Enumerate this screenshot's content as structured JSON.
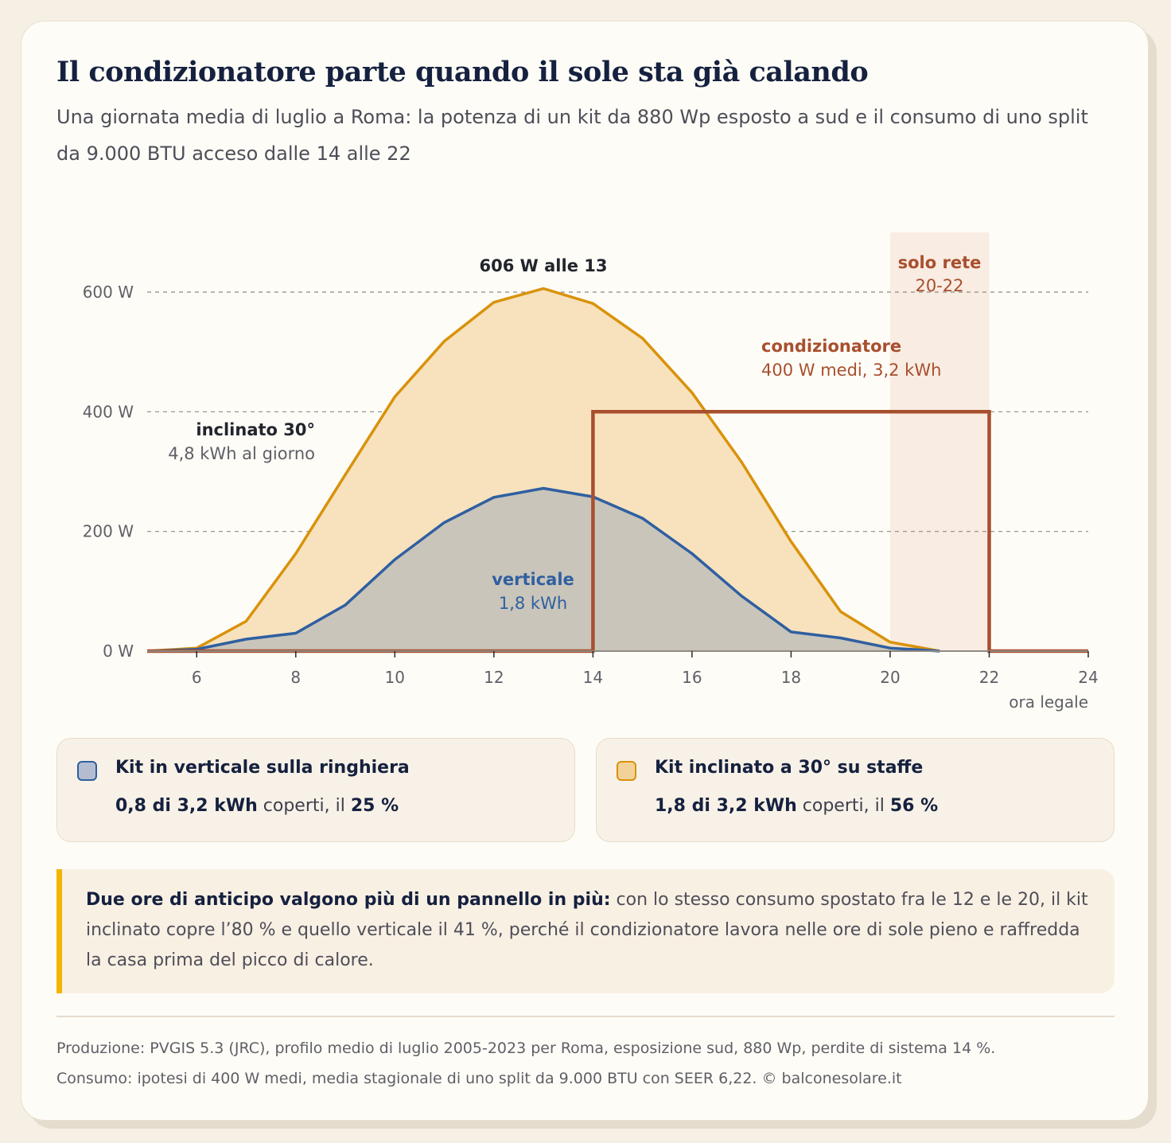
{
  "title": "Il condizionatore parte quando il sole sta già calando",
  "subtitle": "Una giornata media di luglio a Roma: la potenza di un kit da 880 Wp esposto a sud e il consumo di uno split da 9.000 BTU acceso dalle 14 alle 22",
  "colors": {
    "tilted": "#d9920b",
    "tilted_fill": "#f7e2bd",
    "vertical": "#2f5fa1",
    "vertical_fill": "#c9c5ba",
    "ac": "#a84f2e",
    "grid_only_band": "#f9ece2",
    "ink": "#15213f"
  },
  "chart_data": {
    "type": "area",
    "xlabel": "ora legale",
    "xlim": [
      5,
      24
    ],
    "ylim": [
      0,
      600
    ],
    "x_ticks": [
      6,
      8,
      10,
      12,
      14,
      16,
      18,
      20,
      22,
      24
    ],
    "y_ticks": [
      0,
      200,
      400,
      600
    ],
    "y_tick_labels": [
      "0 W",
      "200 W",
      "400 W",
      "600 W"
    ],
    "grid": "horizontal dashed",
    "series": [
      {
        "name": "inclinato 30°",
        "kind": "area",
        "x": [
          5,
          6,
          7,
          8,
          9,
          10,
          11,
          12,
          13,
          14,
          15,
          16,
          17,
          18,
          19,
          20,
          21
        ],
        "values": [
          0,
          5,
          50,
          163,
          295,
          425,
          518,
          583,
          606,
          581,
          523,
          432,
          316,
          183,
          66,
          15,
          0
        ]
      },
      {
        "name": "verticale",
        "kind": "area",
        "x": [
          5,
          6,
          7,
          8,
          9,
          10,
          11,
          12,
          13,
          14,
          15,
          16,
          17,
          18,
          19,
          20,
          21
        ],
        "values": [
          0,
          3,
          20,
          30,
          77,
          153,
          215,
          257,
          272,
          258,
          222,
          163,
          92,
          32,
          22,
          5,
          0
        ]
      },
      {
        "name": "condizionatore",
        "kind": "step",
        "x": [
          5,
          14,
          14,
          22,
          22,
          24
        ],
        "values": [
          0,
          0,
          400,
          400,
          0,
          0
        ]
      }
    ],
    "band": {
      "from": 20,
      "to": 22,
      "label": "solo rete",
      "sublabel": "20-22"
    },
    "annotations": {
      "peak": "606 W alle 13",
      "tilted_label": "inclinato 30°",
      "tilted_sub": "4,8 kWh al giorno",
      "vertical_label": "verticale",
      "vertical_sub": "1,8 kWh",
      "ac_label": "condizionatore",
      "ac_sub": "400 W medi, 3,2 kWh"
    }
  },
  "legend": [
    {
      "title": "Kit in verticale sulla ringhiera",
      "covered": "0,8 di 3,2 kWh",
      "text": " coperti, il ",
      "pct": "25 %"
    },
    {
      "title": "Kit inclinato a 30° su staffe",
      "covered": "1,8 di 3,2 kWh",
      "text": " coperti, il ",
      "pct": "56 %"
    }
  ],
  "note": {
    "lead": "Due ore di anticipo valgono più di un pannello in più:",
    "body": " con lo stesso consumo spostato fra le 12 e le 20, il kit inclinato copre l’80 % e quello verticale il 41 %, perché il condizionatore lavora nelle ore di sole pieno e raffredda la casa prima del picco di calore."
  },
  "footer": {
    "line1": "Produzione: PVGIS 5.3 (JRC), profilo medio di luglio 2005-2023 per Roma, esposizione sud, 880 Wp, perdite di sistema 14 %.",
    "line2": "Consumo: ipotesi di 400 W medi, media stagionale di uno split da 9.000 BTU con SEER 6,22. © balconesolare.it"
  }
}
